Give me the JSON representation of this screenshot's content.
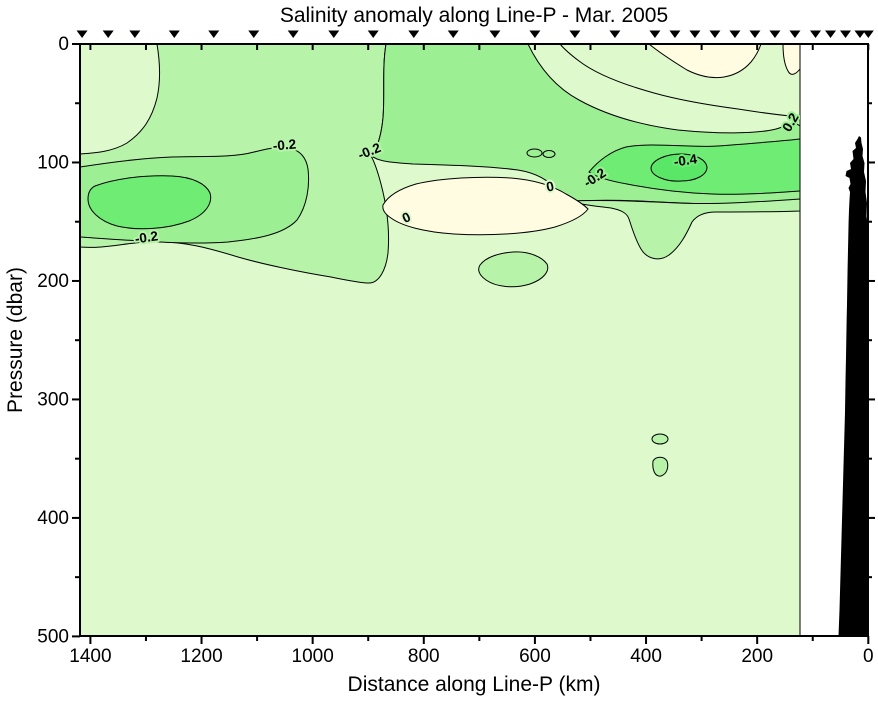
{
  "title": "Salinity anomaly along Line-P - Mar. 2005",
  "x_axis": {
    "label": "Distance along Line-P (km)",
    "tick_labels": [
      "1400",
      "1200",
      "1000",
      "800",
      "600",
      "400",
      "200",
      "0"
    ],
    "minor_tick_interval_km": 100,
    "range_km": [
      1418,
      0
    ],
    "reversed": true
  },
  "y_axis": {
    "label": "Pressure (dbar)",
    "tick_labels": [
      "0",
      "100",
      "200",
      "300",
      "400",
      "500"
    ],
    "minor_tick_interval_dbar": 50,
    "range_dbar": [
      0,
      500
    ]
  },
  "station_markers_km": [
    1415,
    1368,
    1320,
    1249,
    1178,
    1106,
    1035,
    962,
    891,
    818,
    747,
    672,
    600,
    528,
    456,
    384,
    348,
    312,
    276,
    240,
    204,
    168,
    132,
    95,
    68,
    41,
    15,
    0
  ],
  "contour_labels": [
    {
      "text": "-0.2",
      "km": 1050,
      "dbar": 89,
      "rotation": -5,
      "halo": "#B7F3A9"
    },
    {
      "text": "-0.2",
      "km": 895,
      "dbar": 94,
      "rotation": -22,
      "halo": "#B7F3A9"
    },
    {
      "text": "0",
      "km": 828,
      "dbar": 150,
      "rotation": -25,
      "halo": "#DEFACC"
    },
    {
      "text": "0",
      "km": 571,
      "dbar": 124,
      "rotation": -12,
      "halo": "#DEFACC"
    },
    {
      "text": "-0.2",
      "km": 488,
      "dbar": 116,
      "rotation": -33,
      "halo": "#9CEF93"
    },
    {
      "text": "-0.4",
      "km": 328,
      "dbar": 102,
      "rotation": -8,
      "halo": "#6FEC74"
    },
    {
      "text": "-0.2",
      "km": 1298,
      "dbar": 167,
      "rotation": -8,
      "halo": "#B7F3A9"
    },
    {
      "text": "0.2",
      "km": 133,
      "dbar": 68,
      "rotation": -60,
      "halo": "#9CEF93",
      "clipped_at_edge": true
    }
  ],
  "palette": {
    "positive_anomaly": "#FFFCE1",
    "band_0_to_-0.2": "#DEFACC",
    "band_-0.2": "#B7F3A9",
    "band_-0.3": "#9CEF93",
    "band_-0.4": "#6FEC74",
    "below_-0.4": "#5AE768",
    "bathymetry": "#000000",
    "contour_line": "#000000"
  },
  "chart_data": {
    "type": "heatmap",
    "variant": "filled contour section (vertical ocean transect)",
    "title": "Salinity anomaly along Line-P - Mar. 2005",
    "xlabel": "Distance along Line-P (km)",
    "ylabel": "Pressure (dbar)",
    "x_range": [
      1418,
      0
    ],
    "y_range": [
      0,
      500
    ],
    "x_axis_reversed": true,
    "contour_interval": 0.2,
    "labeled_contour_levels": [
      0.2,
      0,
      -0.2,
      -0.4
    ],
    "grid": false,
    "legend": false,
    "station_markers_km": [
      1415,
      1368,
      1320,
      1249,
      1178,
      1106,
      1035,
      962,
      891,
      818,
      747,
      672,
      600,
      528,
      456,
      384,
      348,
      312,
      276,
      240,
      204,
      168,
      132,
      95,
      68,
      41,
      15,
      0
    ],
    "data_right_edge_km": 122,
    "bathymetry": "black seafloor/continental-slope silhouette near 0-55 km, from ~80 dbar down to 500 dbar",
    "features": [
      {
        "feature": "fresh (negative) anomaly core nearshore",
        "level": "< -0.4",
        "center_km": 340,
        "center_dbar": 104,
        "extent_km": [
          290,
          391
        ],
        "extent_dbar": [
          93,
          116
        ]
      },
      {
        "feature": "bright fresh band nearshore",
        "level": "-0.4",
        "extent_km": [
          123,
          503
        ],
        "extent_dbar": [
          80,
          127
        ]
      },
      {
        "feature": "fresh anomaly core offshore",
        "level": "< -0.4",
        "center_km": 1293,
        "center_dbar": 135,
        "extent_km": [
          1181,
          1405
        ],
        "extent_dbar": [
          111,
          158
        ]
      },
      {
        "feature": "salty (positive) anomaly lens at depth",
        "level": "> 0",
        "center_km": 690,
        "center_dbar": 137,
        "extent_km": [
          504,
          873
        ],
        "extent_dbar": [
          112,
          161
        ]
      },
      {
        "feature": "surface positive anomaly patch",
        "level": "> 0",
        "extent_km": [
          191,
          396
        ],
        "extent_dbar": [
          0,
          28
        ]
      },
      {
        "feature": "surface positive patch near coast",
        "level": "> 0",
        "extent_km": [
          123,
          153
        ],
        "extent_dbar": [
          0,
          21
        ]
      },
      {
        "feature": "broad fresh anomaly band along upper layer",
        "level": "-0.2 to -0.4",
        "extent_km": [
          0,
          1290
        ],
        "extent_dbar": [
          0,
          140
        ]
      },
      {
        "feature": "weak background anomaly",
        "level": "-0.2 to 0",
        "extent_km": [
          0,
          1418
        ],
        "extent_dbar": [
          140,
          500
        ]
      },
      {
        "feature": "small fresh patch",
        "level": "-0.2",
        "center_km": 639,
        "center_dbar": 191
      },
      {
        "feature": "tiny fresh patches",
        "level": "-0.2",
        "center_km": 374,
        "center_dbar": 345
      }
    ]
  }
}
